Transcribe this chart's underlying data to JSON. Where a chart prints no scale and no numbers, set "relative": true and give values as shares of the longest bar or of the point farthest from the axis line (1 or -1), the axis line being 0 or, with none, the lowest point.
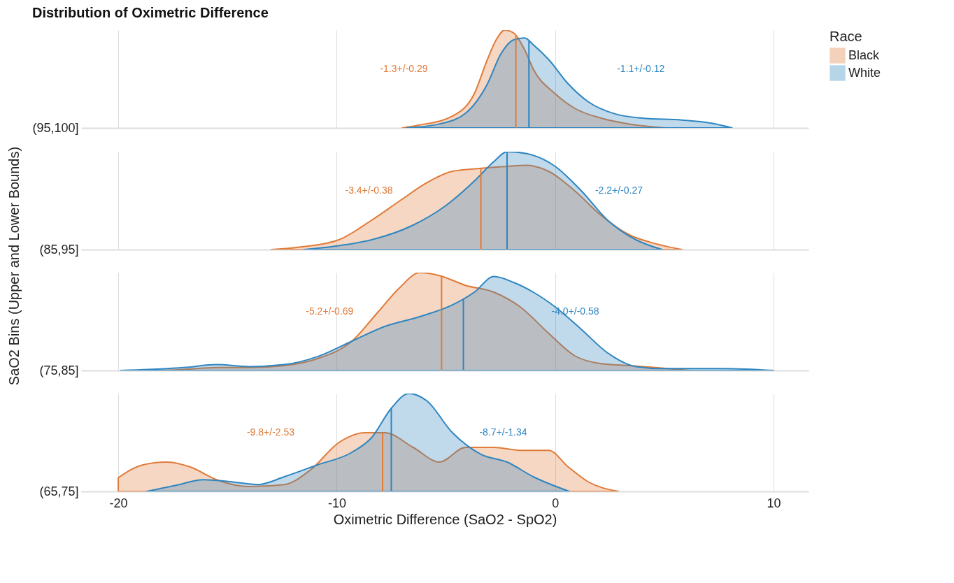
{
  "chart_data": [
    {
      "type": "area",
      "title": "Distribution of Oximetric Difference",
      "ylabel": "(95,100]",
      "relative": true,
      "xlim": [
        -21.7,
        11.6
      ],
      "xticks": [
        -20,
        -10,
        0,
        10
      ],
      "grid": "x",
      "tick_labels": false,
      "legend": "right",
      "legend_title": "Race",
      "annotations": [
        "SaO2 Bins (Upper and Lower Bounds)",
        "-1.3+/-0.29",
        "-1.1+/-0.12"
      ],
      "series": [
        {
          "name": "Black",
          "color": "#e07b39",
          "x": [
            -7.0,
            -6.2,
            -4.7,
            -3.7,
            -3.1,
            -2.7,
            -2.3,
            -1.9,
            -1.4,
            -1.0,
            0,
            0.9,
            2.1,
            3.4,
            5.1
          ],
          "values": [
            0,
            0.03,
            0.12,
            0.35,
            0.7,
            0.9,
            1.0,
            0.97,
            0.8,
            0.6,
            0.35,
            0.2,
            0.1,
            0.04,
            0
          ]
        },
        {
          "name": "White",
          "color": "#2e86c1",
          "x": [
            -6.8,
            -5.3,
            -4.1,
            -3.1,
            -2.5,
            -1.9,
            -1.4,
            -1.0,
            -0.3,
            0.6,
            1.5,
            2.8,
            4.0,
            5.8,
            7.1,
            8.1
          ],
          "values": [
            0,
            0.04,
            0.15,
            0.45,
            0.75,
            0.9,
            0.92,
            0.85,
            0.7,
            0.45,
            0.27,
            0.14,
            0.1,
            0.08,
            0.05,
            0
          ]
        }
      ],
      "ref_lines": [
        {
          "axis": "x",
          "value": -1.8,
          "color": "#e07b39"
        },
        {
          "axis": "x",
          "value": -1.2,
          "color": "#2e86c1"
        }
      ]
    },
    {
      "type": "area",
      "ylabel": "(85,95]",
      "relative": true,
      "xlim": [
        -21.7,
        11.6
      ],
      "xticks": [
        -20,
        -10,
        0,
        10
      ],
      "grid": "x",
      "tick_labels": false,
      "annotations": [
        "-3.4+/-0.38",
        "-2.2+/-0.27"
      ],
      "series": [
        {
          "name": "Black",
          "color": "#e07b39",
          "x": [
            -13.0,
            -11.5,
            -9.9,
            -8.4,
            -7.1,
            -5.9,
            -4.7,
            -3.4,
            -2.2,
            -1.3,
            -0.3,
            0.9,
            2.1,
            3.4,
            4.6,
            5.8
          ],
          "values": [
            0,
            0.03,
            0.1,
            0.3,
            0.5,
            0.68,
            0.8,
            0.83,
            0.85,
            0.86,
            0.8,
            0.6,
            0.35,
            0.15,
            0.06,
            0
          ]
        },
        {
          "name": "White",
          "color": "#2e86c1",
          "x": [
            -11.5,
            -9.9,
            -8.4,
            -6.5,
            -5.0,
            -3.7,
            -2.8,
            -2.2,
            -1.3,
            0,
            1.2,
            2.4,
            3.7,
            4.9
          ],
          "values": [
            0,
            0.04,
            0.1,
            0.25,
            0.45,
            0.7,
            0.9,
            1.0,
            0.98,
            0.85,
            0.6,
            0.3,
            0.1,
            0
          ]
        }
      ],
      "ref_lines": [
        {
          "axis": "x",
          "value": -3.4,
          "color": "#e07b39"
        },
        {
          "axis": "x",
          "value": -2.2,
          "color": "#2e86c1"
        }
      ]
    },
    {
      "type": "area",
      "ylabel": "(75,85]",
      "relative": true,
      "xlim": [
        -21.7,
        11.6
      ],
      "xticks": [
        -20,
        -10,
        0,
        10
      ],
      "grid": "x",
      "tick_labels": false,
      "annotations": [
        "-5.2+/-0.69",
        "-4.0+/-0.58"
      ],
      "series": [
        {
          "name": "Black",
          "color": "#e07b39",
          "x": [
            -18.3,
            -17,
            -15.5,
            -14,
            -12.4,
            -10.9,
            -9.3,
            -8.1,
            -7.1,
            -6.2,
            -5.3,
            -4.1,
            -2.8,
            -1.6,
            -0.3,
            0.9,
            2.1,
            3.4,
            4.6,
            6.2
          ],
          "values": [
            0,
            0.01,
            0.03,
            0.03,
            0.05,
            0.12,
            0.3,
            0.6,
            0.85,
            1.0,
            0.97,
            0.87,
            0.8,
            0.65,
            0.38,
            0.15,
            0.07,
            0.05,
            0.03,
            0
          ]
        },
        {
          "name": "White",
          "color": "#2e86c1",
          "x": [
            -19.9,
            -18.6,
            -17,
            -15.5,
            -14,
            -12.4,
            -10.9,
            -9.3,
            -7.8,
            -6.2,
            -4.7,
            -3.7,
            -2.8,
            -1.9,
            -1.0,
            0,
            1.2,
            2.4,
            3.7,
            4.9,
            6.5,
            7.7,
            10
          ],
          "values": [
            0,
            0.01,
            0.03,
            0.06,
            0.04,
            0.06,
            0.14,
            0.3,
            0.45,
            0.55,
            0.67,
            0.8,
            0.96,
            0.9,
            0.8,
            0.65,
            0.42,
            0.18,
            0.04,
            0.02,
            0.02,
            0.02,
            0
          ]
        }
      ],
      "ref_lines": [
        {
          "axis": "x",
          "value": -5.2,
          "color": "#e07b39"
        },
        {
          "axis": "x",
          "value": -4.2,
          "color": "#2e86c1"
        }
      ]
    },
    {
      "type": "area",
      "ylabel": "(65,75]",
      "xlabel": "Oximetric Difference (SaO2 - SpO2)",
      "relative": true,
      "xlim": [
        -21.7,
        11.6
      ],
      "xticks": [
        -20,
        -10,
        0,
        10
      ],
      "grid": "x",
      "tick_labels": "x",
      "annotations": [
        "-9.8+/-2.53",
        "-8.7+/-1.34"
      ],
      "series": [
        {
          "name": "Black",
          "color": "#e07b39",
          "x": [
            -20,
            -18.9,
            -17.8,
            -16.7,
            -15.5,
            -14,
            -12.4,
            -11.2,
            -9.9,
            -8.7,
            -7.8,
            -6.5,
            -5.3,
            -4.1,
            -2.8,
            -1.6,
            -0.3,
            0.6,
            1.5,
            2.9
          ],
          "values": [
            0.14,
            0.27,
            0.3,
            0.25,
            0.12,
            0.05,
            0.07,
            0.22,
            0.5,
            0.6,
            0.6,
            0.45,
            0.3,
            0.45,
            0.45,
            0.42,
            0.42,
            0.25,
            0.1,
            0
          ]
        },
        {
          "name": "White",
          "color": "#2e86c1",
          "x": [
            -18.7,
            -17.4,
            -16.1,
            -14.9,
            -13.6,
            -12.4,
            -10.9,
            -9.3,
            -8.4,
            -7.5,
            -6.7,
            -5.9,
            -4.7,
            -3.4,
            -2.2,
            -1.0,
            0.65
          ],
          "values": [
            0,
            0.06,
            0.12,
            0.1,
            0.07,
            0.15,
            0.27,
            0.4,
            0.55,
            0.85,
            1.0,
            0.93,
            0.6,
            0.38,
            0.3,
            0.15,
            0
          ]
        }
      ],
      "ref_lines": [
        {
          "axis": "x",
          "value": -7.9,
          "color": "#e07b39"
        },
        {
          "axis": "x",
          "value": -7.5,
          "color": "#2e86c1"
        }
      ]
    }
  ]
}
